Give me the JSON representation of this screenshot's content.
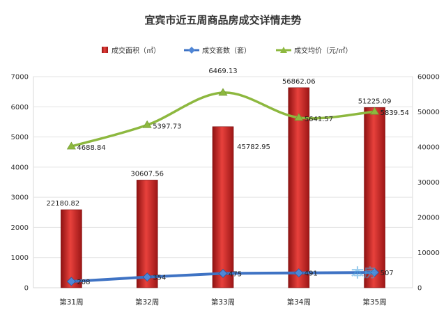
{
  "chart_data": {
    "type": "bar",
    "title": "宜宾市近五周商品房成交详情走势",
    "categories": [
      "第31周",
      "第32周",
      "第33周",
      "第34周",
      "第35周"
    ],
    "legend": {
      "placement": "top",
      "items": [
        "成交面积（㎡）",
        "成交套数（套）",
        "成交均价（元/㎡）"
      ]
    },
    "left_axis": {
      "ylim": [
        0,
        7000
      ],
      "ticks": [
        "0",
        "1000",
        "2000",
        "3000",
        "4000",
        "5000",
        "6000",
        "7000"
      ]
    },
    "right_axis": {
      "ylim": [
        0,
        60000
      ],
      "ticks": [
        "0",
        "10000",
        "20000",
        "30000",
        "40000",
        "50000",
        "60000"
      ]
    },
    "grid": true,
    "series": [
      {
        "name": "成交面积（㎡）",
        "type": "bar",
        "axis": "right",
        "color": "#c8201f",
        "values": [
          22180.82,
          30607.56,
          45782.95,
          56862.06,
          51225.09
        ],
        "labels": [
          "22180.82",
          "30607.56",
          "45782.95",
          "56862.06",
          "51225.09"
        ]
      },
      {
        "name": "成交套数（套）",
        "type": "line",
        "axis": "left",
        "color": "#3f73c4",
        "values": [
          208,
          354,
          475,
          491,
          507
        ],
        "labels": [
          "208",
          "354",
          "475",
          "491",
          "507"
        ]
      },
      {
        "name": "成交均价（元/㎡）",
        "type": "line",
        "axis": "left",
        "color": "#8db83f",
        "values": [
          4688.84,
          5397.73,
          6469.13,
          5641.57,
          5839.54
        ],
        "labels": [
          "4688.84",
          "5397.73",
          "6469.13",
          "5641.57",
          "5839.54"
        ]
      }
    ],
    "watermark": "本房"
  }
}
